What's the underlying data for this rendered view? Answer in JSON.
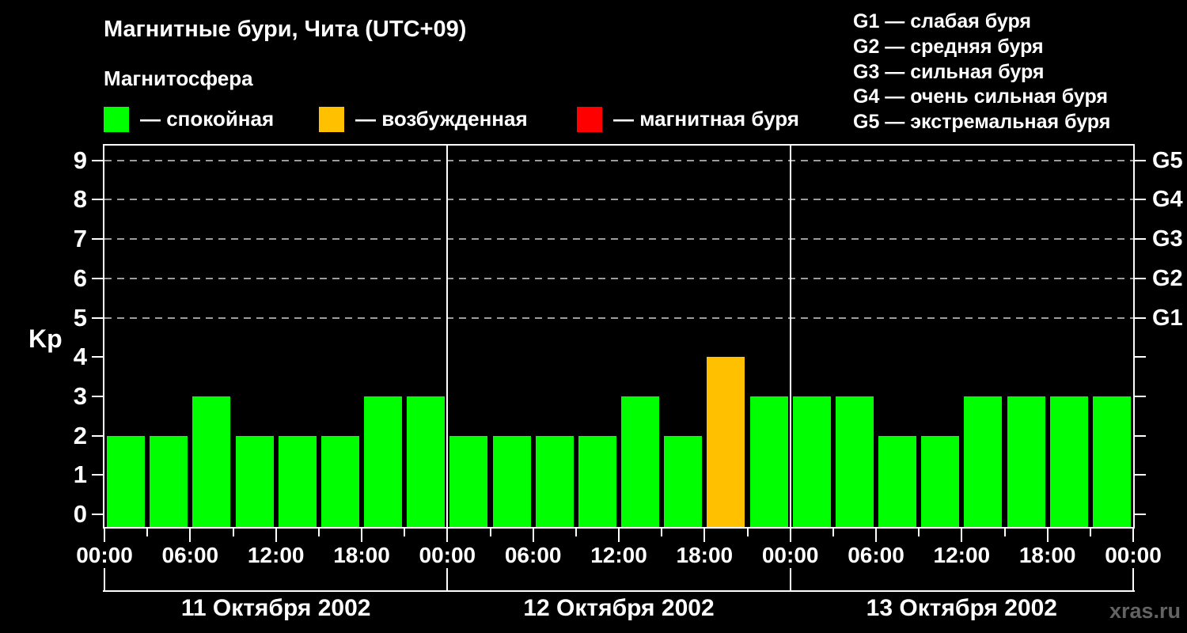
{
  "title": "Магнитные бури, Чита (UTC+09)",
  "subtitle": "Магнитосфера",
  "magnetosphere_legend": [
    {
      "name": "quiet",
      "label": "— спокойная",
      "color": "#00ff00"
    },
    {
      "name": "excited",
      "label": "— возбужденная",
      "color": "#ffc000"
    },
    {
      "name": "storm",
      "label": "— магнитная буря",
      "color": "#ff0000"
    }
  ],
  "storm_scale_legend": [
    "G1 — слабая буря",
    "G2 — средняя буря",
    "G3 — сильная буря",
    "G4 — очень сильная буря",
    "G5 — экстремальная буря"
  ],
  "watermark": "xras.ru",
  "chart_data": {
    "type": "bar",
    "title": "Магнитные бури, Чита (UTC+09)",
    "ylabel": "Kp",
    "ylim": [
      0,
      9
    ],
    "yticks": [
      0,
      1,
      2,
      3,
      4,
      5,
      6,
      7,
      8,
      9
    ],
    "gridlines_at_kp": [
      5,
      6,
      7,
      8,
      9
    ],
    "grid_style": "dashed",
    "right_axis": [
      {
        "kp": 5,
        "label": "G1"
      },
      {
        "kp": 6,
        "label": "G2"
      },
      {
        "kp": 7,
        "label": "G3"
      },
      {
        "kp": 8,
        "label": "G4"
      },
      {
        "kp": 9,
        "label": "G5"
      }
    ],
    "x_tick_labels": [
      "00:00",
      "06:00",
      "12:00",
      "18:00",
      "00:00",
      "06:00",
      "12:00",
      "18:00",
      "00:00",
      "06:00",
      "12:00",
      "18:00",
      "00:00"
    ],
    "bar_interval_hours": 3,
    "days": [
      {
        "label": "11 Октября 2002",
        "values": [
          2,
          2,
          3,
          2,
          2,
          2,
          3,
          3
        ]
      },
      {
        "label": "12 Октября 2002",
        "values": [
          2,
          2,
          2,
          2,
          3,
          2,
          4,
          3
        ]
      },
      {
        "label": "13 Октября 2002",
        "values": [
          3,
          3,
          2,
          2,
          3,
          3,
          3,
          3
        ]
      }
    ],
    "colors": {
      "quiet": "#00ff00",
      "excited": "#ffc000",
      "storm": "#ff0000"
    },
    "color_rule": {
      "quiet_max_kp": 3,
      "excited_kp": 4,
      "storm_min_kp": 5
    }
  }
}
